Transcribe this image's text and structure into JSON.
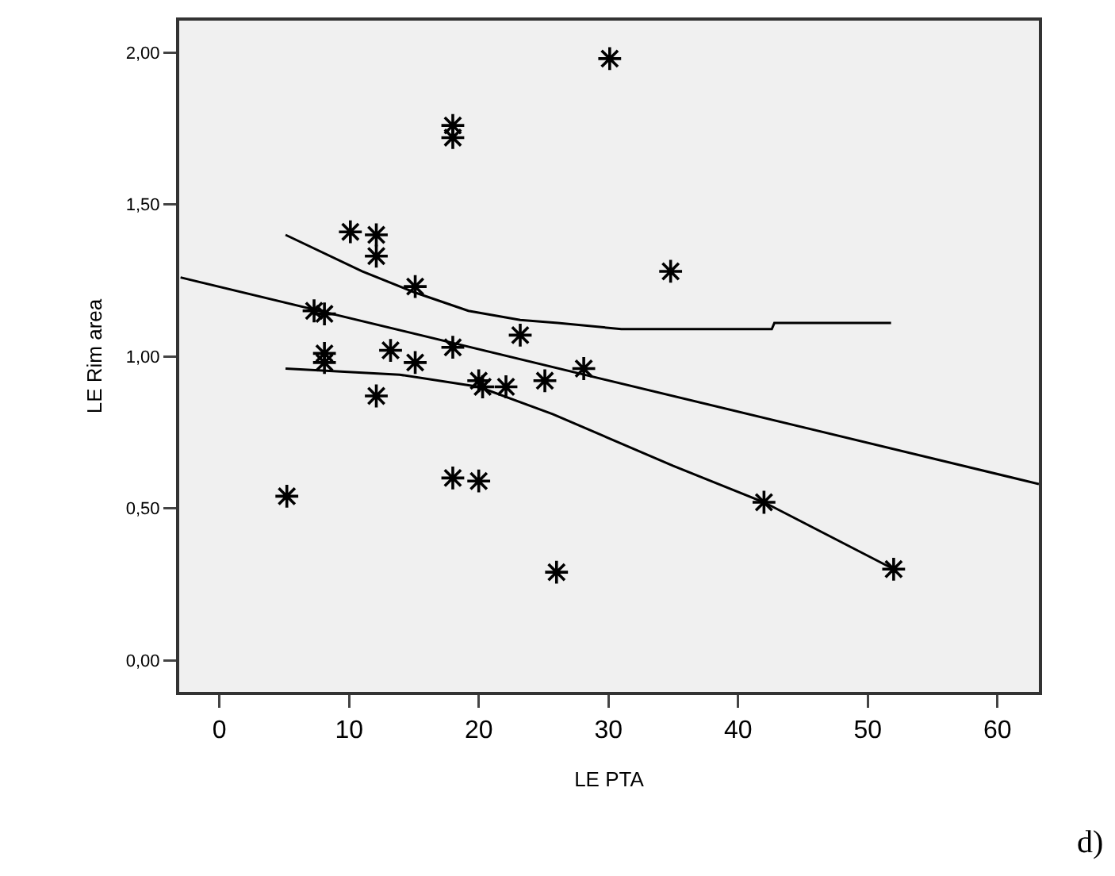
{
  "chart_data": {
    "type": "scatter",
    "xlabel": "LE PTA",
    "ylabel": "LE Rim area",
    "marker": "cross",
    "grid": false,
    "xlim": [
      -3.1,
      63.2
    ],
    "ylim": [
      -0.104,
      2.105
    ],
    "xticks": [
      0,
      10,
      20,
      30,
      40,
      50,
      60
    ],
    "yticks": [
      {
        "value": 0,
        "label": "0,00"
      },
      {
        "value": 0.5,
        "label": "0,50"
      },
      {
        "value": 1,
        "label": "1,00"
      },
      {
        "value": 1.5,
        "label": "1,50"
      },
      {
        "value": 2,
        "label": "2,00"
      }
    ],
    "annotations": [
      "d)"
    ],
    "series": [
      {
        "color": "#000000",
        "x": [
          5.2,
          7.3,
          8.1,
          8.1,
          8.1,
          10.1,
          12.1,
          12.1,
          12.1,
          13.2,
          15.1,
          15.1,
          18.0,
          18.0,
          18.0,
          18.0,
          20.0,
          20.0,
          20.3,
          22.1,
          23.2,
          25.1,
          26.0,
          28.1,
          30.1,
          34.8,
          42.0,
          52.0
        ],
        "values": [
          0.54,
          1.15,
          1.14,
          1.01,
          0.98,
          1.41,
          1.4,
          1.33,
          0.87,
          1.02,
          1.23,
          0.98,
          1.76,
          1.72,
          1.03,
          0.6,
          0.92,
          0.59,
          0.9,
          0.9,
          1.07,
          0.92,
          0.29,
          0.96,
          1.98,
          1.28,
          0.52,
          0.3
        ]
      },
      {
        "type": "line",
        "color": "#000000",
        "marker": "none",
        "x": [
          -3.0,
          63.2
        ],
        "values": [
          1.26,
          0.58
        ]
      },
      {
        "type": "line",
        "color": "#000000",
        "marker": "none",
        "x": [
          5.1,
          11.0,
          15.1,
          19.2,
          23.2,
          26.1,
          31.0,
          42.6,
          42.8,
          51.8
        ],
        "values": [
          1.4,
          1.28,
          1.21,
          1.15,
          1.12,
          1.11,
          1.09,
          1.09,
          1.11,
          1.11
        ]
      },
      {
        "type": "line",
        "color": "#000000",
        "marker": "none",
        "x": [
          5.1,
          13.9,
          20.0,
          25.7,
          35.0,
          42.0,
          52.0
        ],
        "values": [
          0.96,
          0.94,
          0.9,
          0.81,
          0.64,
          0.52,
          0.3
        ]
      }
    ]
  }
}
